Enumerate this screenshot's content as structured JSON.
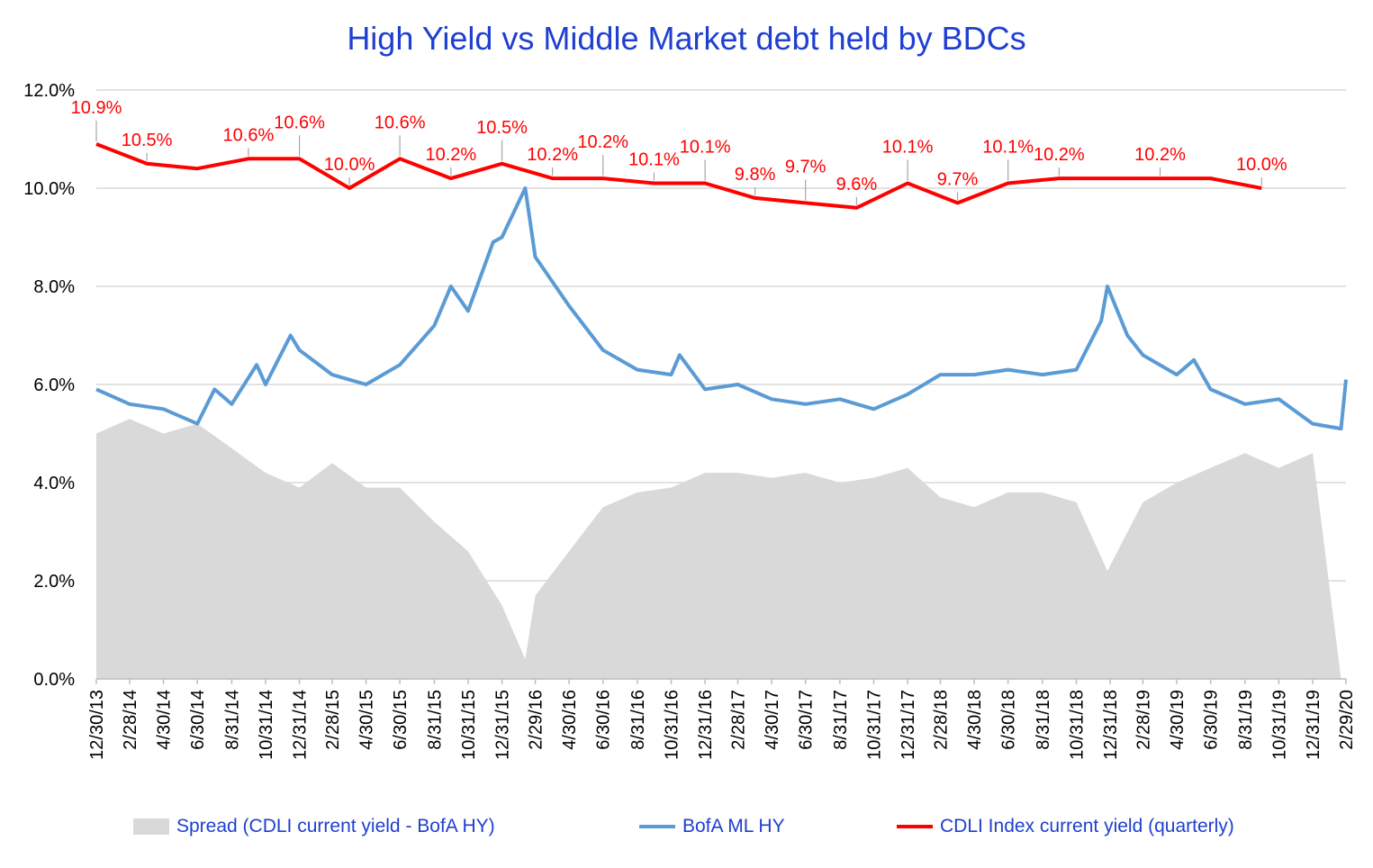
{
  "chart_data": {
    "type": "line",
    "title": "High Yield  vs  Middle Market debt held by BDCs",
    "ylim": [
      0,
      12
    ],
    "yticks": [
      "0.0%",
      "2.0%",
      "4.0%",
      "6.0%",
      "8.0%",
      "10.0%",
      "12.0%"
    ],
    "grid": true,
    "legend_position": "bottom",
    "x_tick_labels": [
      "12/30/13",
      "2/28/14",
      "4/30/14",
      "6/30/14",
      "8/31/14",
      "10/31/14",
      "12/31/14",
      "2/28/15",
      "4/30/15",
      "6/30/15",
      "8/31/15",
      "10/31/15",
      "12/31/15",
      "2/29/16",
      "4/30/16",
      "6/30/16",
      "8/31/16",
      "10/31/16",
      "12/31/16",
      "2/28/17",
      "4/30/17",
      "6/30/17",
      "8/31/17",
      "10/31/17",
      "12/31/17",
      "2/28/18",
      "4/30/18",
      "6/30/18",
      "8/31/18",
      "10/31/18",
      "12/31/18",
      "2/28/19",
      "4/30/19",
      "6/30/19",
      "8/31/19",
      "10/31/19",
      "12/31/19",
      "2/29/20"
    ],
    "series": [
      {
        "name": "CDLI Index current yield (quarterly)",
        "color": "#ff0000",
        "x": [
          "12/30/13",
          "3/31/14",
          "6/30/14",
          "9/30/14",
          "12/31/14",
          "3/31/15",
          "6/30/15",
          "9/30/15",
          "12/31/15",
          "3/31/16",
          "6/30/16",
          "9/30/16",
          "12/31/16",
          "3/31/17",
          "6/30/17",
          "9/30/17",
          "12/31/17",
          "3/31/18",
          "6/30/18",
          "9/30/18",
          "12/31/18",
          "3/31/19",
          "6/30/19",
          "9/30/19"
        ],
        "values": [
          10.9,
          10.5,
          10.4,
          10.6,
          10.6,
          10.0,
          10.6,
          10.2,
          10.5,
          10.2,
          10.2,
          10.1,
          10.1,
          9.8,
          9.7,
          9.6,
          10.1,
          9.7,
          10.1,
          10.2,
          10.2,
          10.2,
          10.2,
          10.0
        ],
        "data_labels": [
          "10.9%",
          "10.5%",
          "",
          "10.6%",
          "10.6%",
          "10.0%",
          "10.6%",
          "10.2%",
          "10.5%",
          "10.2%",
          "10.2%",
          "10.1%",
          "10.1%",
          "9.8%",
          "9.7%",
          "9.6%",
          "10.1%",
          "9.7%",
          "10.1%",
          "10.2%",
          "",
          "10.2%",
          "",
          "10.0%"
        ]
      },
      {
        "name": "BofA ML HY",
        "color": "#5b9bd5",
        "x": [
          "12/30/13",
          "2/28/14",
          "4/30/14",
          "6/30/14",
          "7/31/14",
          "8/31/14",
          "10/15/14",
          "10/31/14",
          "12/15/14",
          "12/31/14",
          "2/28/15",
          "4/30/15",
          "6/30/15",
          "8/31/15",
          "9/30/15",
          "10/31/15",
          "12/15/15",
          "12/31/15",
          "2/11/16",
          "2/29/16",
          "4/30/16",
          "6/30/16",
          "8/31/16",
          "10/31/16",
          "11/15/16",
          "12/31/16",
          "2/28/17",
          "4/30/17",
          "6/30/17",
          "8/31/17",
          "10/31/17",
          "12/31/17",
          "2/28/18",
          "4/30/18",
          "6/30/18",
          "8/31/18",
          "10/31/18",
          "12/15/18",
          "12/26/18",
          "1/31/19",
          "2/28/19",
          "4/30/19",
          "5/31/19",
          "6/30/19",
          "8/31/19",
          "10/31/19",
          "12/31/19",
          "2/20/20",
          "2/29/20"
        ],
        "values": [
          5.9,
          5.6,
          5.5,
          5.2,
          5.9,
          5.6,
          6.4,
          6.0,
          7.0,
          6.7,
          6.2,
          6.0,
          6.4,
          7.2,
          8.0,
          7.5,
          8.9,
          9.0,
          10.0,
          8.6,
          7.6,
          6.7,
          6.3,
          6.2,
          6.6,
          5.9,
          6.0,
          5.7,
          5.6,
          5.7,
          5.5,
          5.8,
          6.2,
          6.2,
          6.3,
          6.2,
          6.3,
          7.3,
          8.0,
          7.0,
          6.6,
          6.2,
          6.5,
          5.9,
          5.6,
          5.7,
          5.2,
          5.1,
          6.1
        ]
      },
      {
        "name": "Spread (CDLI current yield - BofA HY)",
        "color": "#d9d9d9",
        "x": [
          "12/30/13",
          "2/28/14",
          "4/30/14",
          "6/30/14",
          "8/31/14",
          "10/31/14",
          "12/31/14",
          "2/28/15",
          "4/30/15",
          "6/30/15",
          "8/31/15",
          "10/31/15",
          "12/31/15",
          "2/11/16",
          "2/29/16",
          "4/30/16",
          "6/30/16",
          "8/31/16",
          "10/31/16",
          "12/31/16",
          "2/28/17",
          "4/30/17",
          "6/30/17",
          "8/31/17",
          "10/31/17",
          "12/31/17",
          "2/28/18",
          "4/30/18",
          "6/30/18",
          "8/31/18",
          "10/31/18",
          "12/26/18",
          "2/28/19",
          "4/30/19",
          "6/30/19",
          "8/31/19",
          "10/31/19",
          "12/31/19",
          "2/20/20"
        ],
        "values": [
          5.0,
          5.3,
          5.0,
          5.2,
          4.7,
          4.2,
          3.9,
          4.4,
          3.9,
          3.9,
          3.2,
          2.6,
          1.5,
          0.4,
          1.7,
          2.6,
          3.5,
          3.8,
          3.9,
          4.2,
          4.2,
          4.1,
          4.2,
          4.0,
          4.1,
          4.3,
          3.7,
          3.5,
          3.8,
          3.8,
          3.6,
          2.2,
          3.6,
          4.0,
          4.3,
          4.6,
          4.3,
          4.6,
          0.0
        ]
      }
    ]
  }
}
